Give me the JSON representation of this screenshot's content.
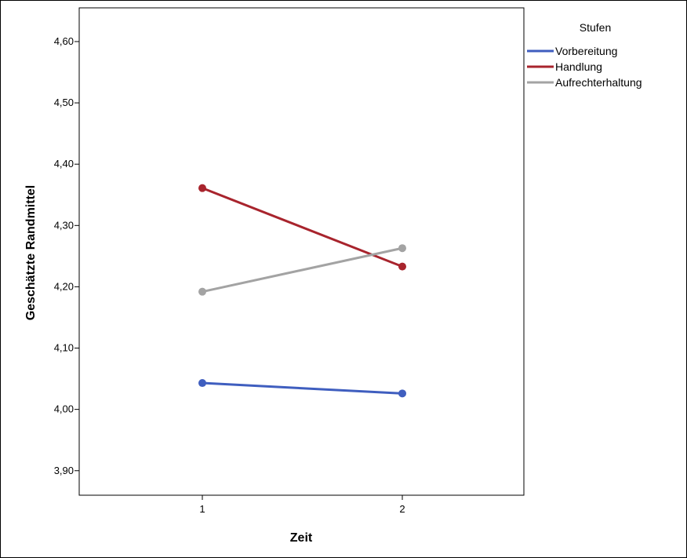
{
  "chart_data": {
    "type": "line",
    "title": "",
    "xlabel": "Zeit",
    "ylabel": "Geschätzte Randmittel",
    "categories": [
      "1",
      "2"
    ],
    "ylim": [
      3.86,
      4.655
    ],
    "yticks": [
      "3,90",
      "4,00",
      "4,10",
      "4,20",
      "4,30",
      "4,40",
      "4,50",
      "4,60"
    ],
    "ytick_values": [
      3.9,
      4.0,
      4.1,
      4.2,
      4.3,
      4.4,
      4.5,
      4.6
    ],
    "grid": false,
    "legend": {
      "title": "Stufen",
      "position": "top-right-outside"
    },
    "series": [
      {
        "name": "Vorbereitung",
        "values": [
          4.043,
          4.026
        ],
        "color": "#3F5EBF"
      },
      {
        "name": "Handlung",
        "values": [
          4.361,
          4.233
        ],
        "color": "#A8242D"
      },
      {
        "name": "Aufrechterhaltung",
        "values": [
          4.192,
          4.263
        ],
        "color": "#A3A3A3"
      }
    ]
  }
}
